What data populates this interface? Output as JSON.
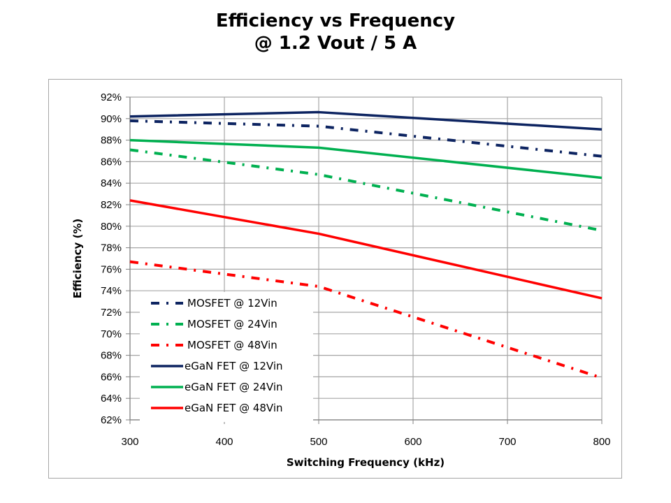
{
  "chart_data": {
    "type": "line",
    "title_line1": "Efficiency vs Frequency",
    "title_line2": "@ 1.2 Vout / 5 A",
    "xlabel": "Switching Frequency (kHz)",
    "ylabel": "Efficiency (%)",
    "xlim": [
      300,
      800
    ],
    "ylim": [
      62,
      92
    ],
    "x_ticks": [
      300,
      400,
      500,
      600,
      700,
      800
    ],
    "y_ticks": [
      62,
      64,
      66,
      68,
      70,
      72,
      74,
      76,
      78,
      80,
      82,
      84,
      86,
      88,
      90,
      92
    ],
    "y_tick_suffix": "%",
    "grid": true,
    "legend_position": "lower-left",
    "x": [
      300,
      500,
      800
    ],
    "series": [
      {
        "name": "MOSFET @ 12Vin",
        "color": "#0d2461",
        "style": "dash-dot",
        "values": [
          89.8,
          89.3,
          86.5
        ]
      },
      {
        "name": "MOSFET @ 24Vin",
        "color": "#00b050",
        "style": "dash-dot",
        "values": [
          87.1,
          84.8,
          79.6
        ]
      },
      {
        "name": "MOSFET @ 48Vin",
        "color": "#ff0000",
        "style": "dash-dot",
        "values": [
          76.7,
          74.4,
          65.9
        ]
      },
      {
        "name": "eGaN FET @ 12Vin",
        "color": "#0d2461",
        "style": "solid",
        "values": [
          90.2,
          90.6,
          89.0
        ]
      },
      {
        "name": "eGaN FET @ 24Vin",
        "color": "#00b050",
        "style": "solid",
        "values": [
          88.0,
          87.3,
          84.5
        ]
      },
      {
        "name": "eGaN FET @ 48Vin",
        "color": "#ff0000",
        "style": "solid",
        "values": [
          82.4,
          79.3,
          73.3
        ]
      }
    ]
  }
}
